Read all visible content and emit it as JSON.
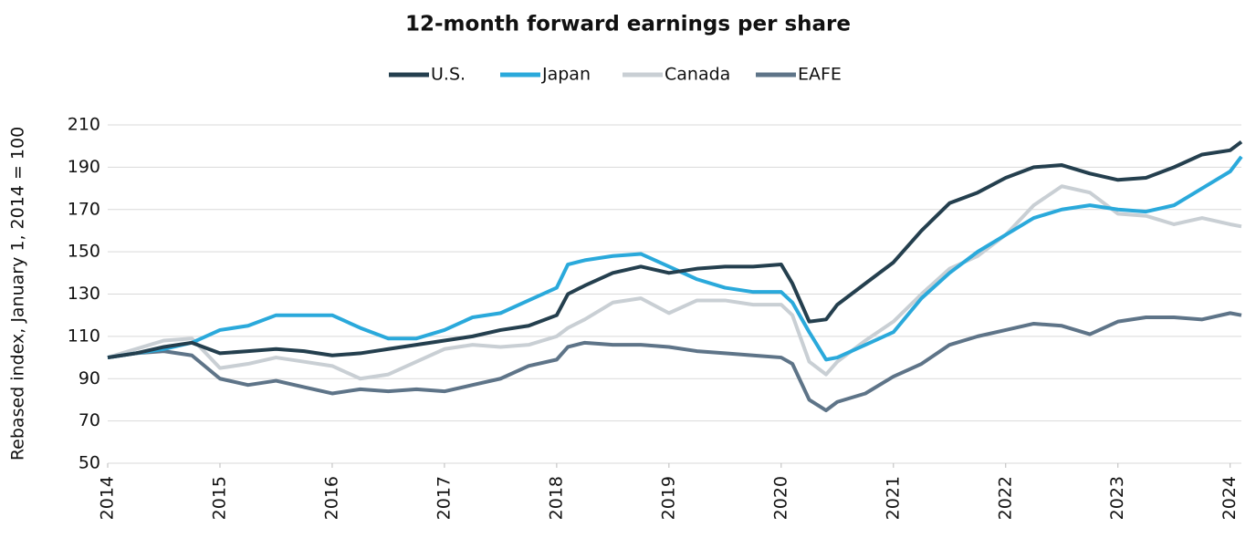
{
  "chart_data": {
    "type": "line",
    "title": "12-month forward earnings per share",
    "y_label": "Rebased index, January 1, 2014 = 100",
    "x": [
      2014,
      2014.25,
      2014.5,
      2014.75,
      2015,
      2015.25,
      2015.5,
      2015.75,
      2016,
      2016.25,
      2016.5,
      2016.75,
      2017,
      2017.25,
      2017.5,
      2017.75,
      2018,
      2018.1,
      2018.25,
      2018.5,
      2018.75,
      2019,
      2019.25,
      2019.5,
      2019.75,
      2020,
      2020.1,
      2020.25,
      2020.4,
      2020.5,
      2020.75,
      2021,
      2021.25,
      2021.5,
      2021.75,
      2022,
      2022.25,
      2022.5,
      2022.75,
      2023,
      2023.25,
      2023.5,
      2023.75,
      2024,
      2024.1
    ],
    "series": [
      {
        "name": "U.S.",
        "color": "#243f4e",
        "values": [
          100,
          102,
          105,
          107,
          102,
          103,
          104,
          103,
          101,
          102,
          104,
          106,
          108,
          110,
          113,
          115,
          120,
          130,
          134,
          140,
          143,
          140,
          142,
          143,
          143,
          144,
          135,
          117,
          118,
          125,
          135,
          145,
          160,
          173,
          178,
          185,
          190,
          191,
          187,
          184,
          185,
          190,
          196,
          198,
          202
        ]
      },
      {
        "name": "Japan",
        "color": "#2aa9db",
        "values": [
          100,
          102,
          104,
          107,
          113,
          115,
          120,
          120,
          120,
          114,
          109,
          109,
          113,
          119,
          121,
          127,
          133,
          144,
          146,
          148,
          149,
          143,
          137,
          133,
          131,
          131,
          126,
          112,
          99,
          100,
          106,
          112,
          128,
          140,
          150,
          158,
          166,
          170,
          172,
          170,
          169,
          172,
          180,
          188,
          195
        ]
      },
      {
        "name": "Canada",
        "color": "#c9cfd4",
        "values": [
          100,
          104,
          108,
          109,
          95,
          97,
          100,
          98,
          96,
          90,
          92,
          98,
          104,
          106,
          105,
          106,
          110,
          114,
          118,
          126,
          128,
          121,
          127,
          127,
          125,
          125,
          120,
          98,
          92,
          98,
          108,
          117,
          130,
          142,
          148,
          158,
          172,
          181,
          178,
          168,
          167,
          163,
          166,
          163,
          162
        ]
      },
      {
        "name": "EAFE",
        "color": "#5e7488",
        "values": [
          100,
          102,
          103,
          101,
          90,
          87,
          89,
          86,
          83,
          85,
          84,
          85,
          84,
          87,
          90,
          96,
          99,
          105,
          107,
          106,
          106,
          105,
          103,
          102,
          101,
          100,
          97,
          80,
          75,
          79,
          83,
          91,
          97,
          106,
          110,
          113,
          116,
          115,
          111,
          117,
          119,
          119,
          118,
          121,
          120
        ]
      }
    ],
    "xlim": [
      2014,
      2024.1
    ],
    "xticks": [
      2014,
      2015,
      2016,
      2017,
      2018,
      2019,
      2020,
      2021,
      2022,
      2023,
      2024
    ],
    "ylim": [
      50,
      210
    ],
    "yticks": [
      50,
      70,
      90,
      110,
      130,
      150,
      170,
      190,
      210
    ],
    "grid": true,
    "legend": "top"
  }
}
